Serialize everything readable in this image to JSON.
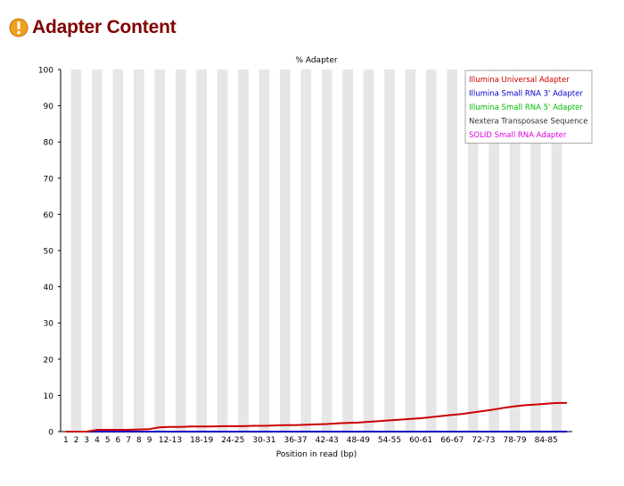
{
  "page": {
    "title": "Adapter Content",
    "status_icon": "warning-icon",
    "status_color": "#f0a020"
  },
  "chart_data": {
    "type": "line",
    "title": "% Adapter",
    "xlabel": "Position in read (bp)",
    "ylabel": "",
    "ylim": [
      0,
      100
    ],
    "yticks": [
      0,
      10,
      20,
      30,
      40,
      50,
      60,
      70,
      80,
      90,
      100
    ],
    "grid": "alternating vertical bands",
    "legend_position": "top-right",
    "categories": [
      "1",
      "2",
      "3",
      "4",
      "5",
      "6",
      "7",
      "8",
      "9",
      "10-11",
      "12-13",
      "14-15",
      "16-17",
      "18-19",
      "20-21",
      "22-23",
      "24-25",
      "26-27",
      "28-29",
      "30-31",
      "32-33",
      "34-35",
      "36-37",
      "38-39",
      "40-41",
      "42-43",
      "44-45",
      "46-47",
      "48-49",
      "50-51",
      "52-53",
      "54-55",
      "56-57",
      "58-59",
      "60-61",
      "62-63",
      "64-65",
      "66-67",
      "68-69",
      "70-71",
      "72-73",
      "74-75",
      "76-77",
      "78-79",
      "80-81",
      "82-83",
      "84-85",
      "86-87",
      "88-89"
    ],
    "x_tick_labels": [
      "1",
      "2",
      "3",
      "4",
      "5",
      "6",
      "7",
      "8",
      "9",
      "12-13",
      "18-19",
      "24-25",
      "30-31",
      "36-37",
      "42-43",
      "48-49",
      "54-55",
      "60-61",
      "66-67",
      "72-73",
      "78-79",
      "84-85"
    ],
    "series": [
      {
        "name": "Illumina Universal Adapter",
        "color": "#cc0000",
        "values": [
          0,
          0,
          0,
          0.5,
          0.5,
          0.5,
          0.5,
          0.6,
          0.7,
          1.2,
          1.3,
          1.3,
          1.4,
          1.4,
          1.4,
          1.5,
          1.5,
          1.5,
          1.6,
          1.6,
          1.7,
          1.8,
          1.8,
          1.9,
          2.0,
          2.1,
          2.3,
          2.4,
          2.5,
          2.7,
          2.9,
          3.1,
          3.3,
          3.5,
          3.7,
          4.0,
          4.3,
          4.6,
          4.9,
          5.3,
          5.7,
          6.1,
          6.6,
          7.0,
          7.3,
          7.5,
          7.7,
          7.9,
          7.9
        ]
      },
      {
        "name": "Illumina Small RNA 3' Adapter",
        "color": "#0000cc",
        "values": [
          0,
          0,
          0,
          0,
          0,
          0,
          0,
          0,
          0,
          0,
          0,
          0,
          0,
          0,
          0,
          0,
          0,
          0,
          0,
          0,
          0,
          0,
          0,
          0,
          0,
          0,
          0,
          0,
          0,
          0,
          0,
          0,
          0,
          0,
          0,
          0,
          0,
          0,
          0,
          0,
          0,
          0,
          0,
          0,
          0,
          0,
          0,
          0,
          0
        ]
      },
      {
        "name": "Illumina Small RNA 5' Adapter",
        "color": "#00bb00",
        "values": [
          0,
          0,
          0,
          0,
          0,
          0,
          0,
          0,
          0,
          0,
          0,
          0,
          0,
          0,
          0,
          0,
          0,
          0,
          0,
          0,
          0,
          0,
          0,
          0,
          0,
          0,
          0,
          0,
          0,
          0,
          0,
          0,
          0,
          0,
          0,
          0,
          0,
          0,
          0,
          0,
          0,
          0,
          0,
          0,
          0,
          0,
          0,
          0,
          0
        ]
      },
      {
        "name": "Nextera Transposase Sequence",
        "color": "#333333",
        "values": [
          0,
          0,
          0,
          0,
          0,
          0,
          0,
          0,
          0,
          0,
          0,
          0,
          0,
          0,
          0,
          0,
          0,
          0,
          0,
          0,
          0,
          0,
          0,
          0,
          0,
          0,
          0,
          0,
          0,
          0,
          0,
          0,
          0,
          0,
          0,
          0,
          0,
          0,
          0,
          0,
          0,
          0,
          0,
          0,
          0,
          0,
          0,
          0,
          0
        ]
      },
      {
        "name": "SOLID Small RNA Adapter",
        "color": "#dd00dd",
        "values": [
          0,
          0,
          0,
          0,
          0,
          0,
          0,
          0,
          0,
          0,
          0,
          0,
          0,
          0,
          0,
          0,
          0,
          0,
          0,
          0,
          0,
          0,
          0,
          0,
          0,
          0,
          0,
          0,
          0,
          0,
          0,
          0,
          0,
          0,
          0,
          0,
          0,
          0,
          0,
          0,
          0,
          0,
          0,
          0,
          0,
          0,
          0,
          0,
          0
        ]
      }
    ]
  }
}
